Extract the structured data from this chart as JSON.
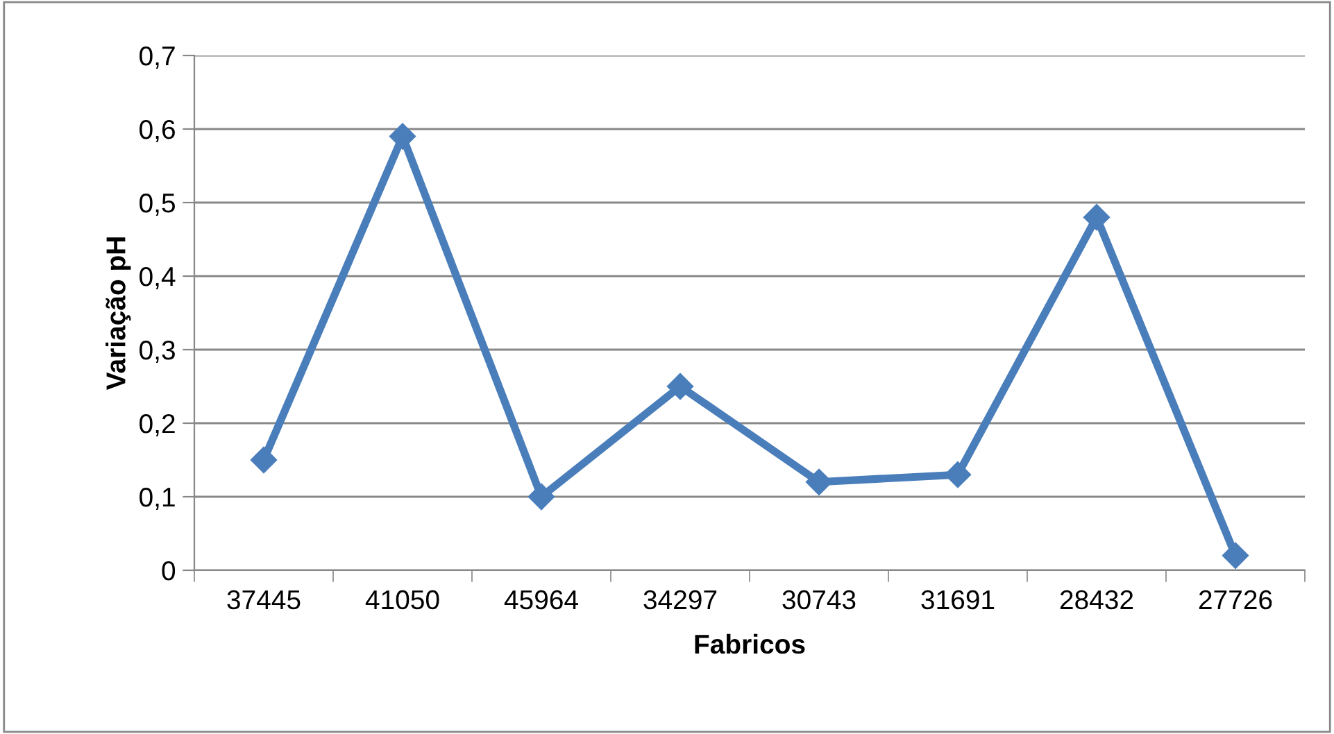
{
  "chart_data": {
    "type": "line",
    "xlabel": "Fabricos",
    "ylabel": "Variação pH",
    "categories": [
      "37445",
      "41050",
      "45964",
      "34297",
      "30743",
      "31691",
      "28432",
      "27726"
    ],
    "series": [
      {
        "color": "#4a7ebb",
        "values": [
          0.15,
          0.59,
          0.1,
          0.25,
          0.12,
          0.13,
          0.48,
          0.02
        ]
      }
    ],
    "ylim": [
      0,
      0.7
    ],
    "yticks": [
      0,
      {
        "value": 0.1,
        "label": "0,1"
      },
      {
        "value": 0.2,
        "label": "0,2"
      },
      {
        "value": 0.3,
        "label": "0,3"
      },
      {
        "value": 0.4,
        "label": "0,4"
      },
      {
        "value": 0.5,
        "label": "0,5"
      },
      {
        "value": 0.6,
        "label": "0,6"
      },
      {
        "value": 0.7,
        "label": "0,7"
      }
    ],
    "grid": "y",
    "marker": "diamond",
    "line_style": "solid"
  }
}
